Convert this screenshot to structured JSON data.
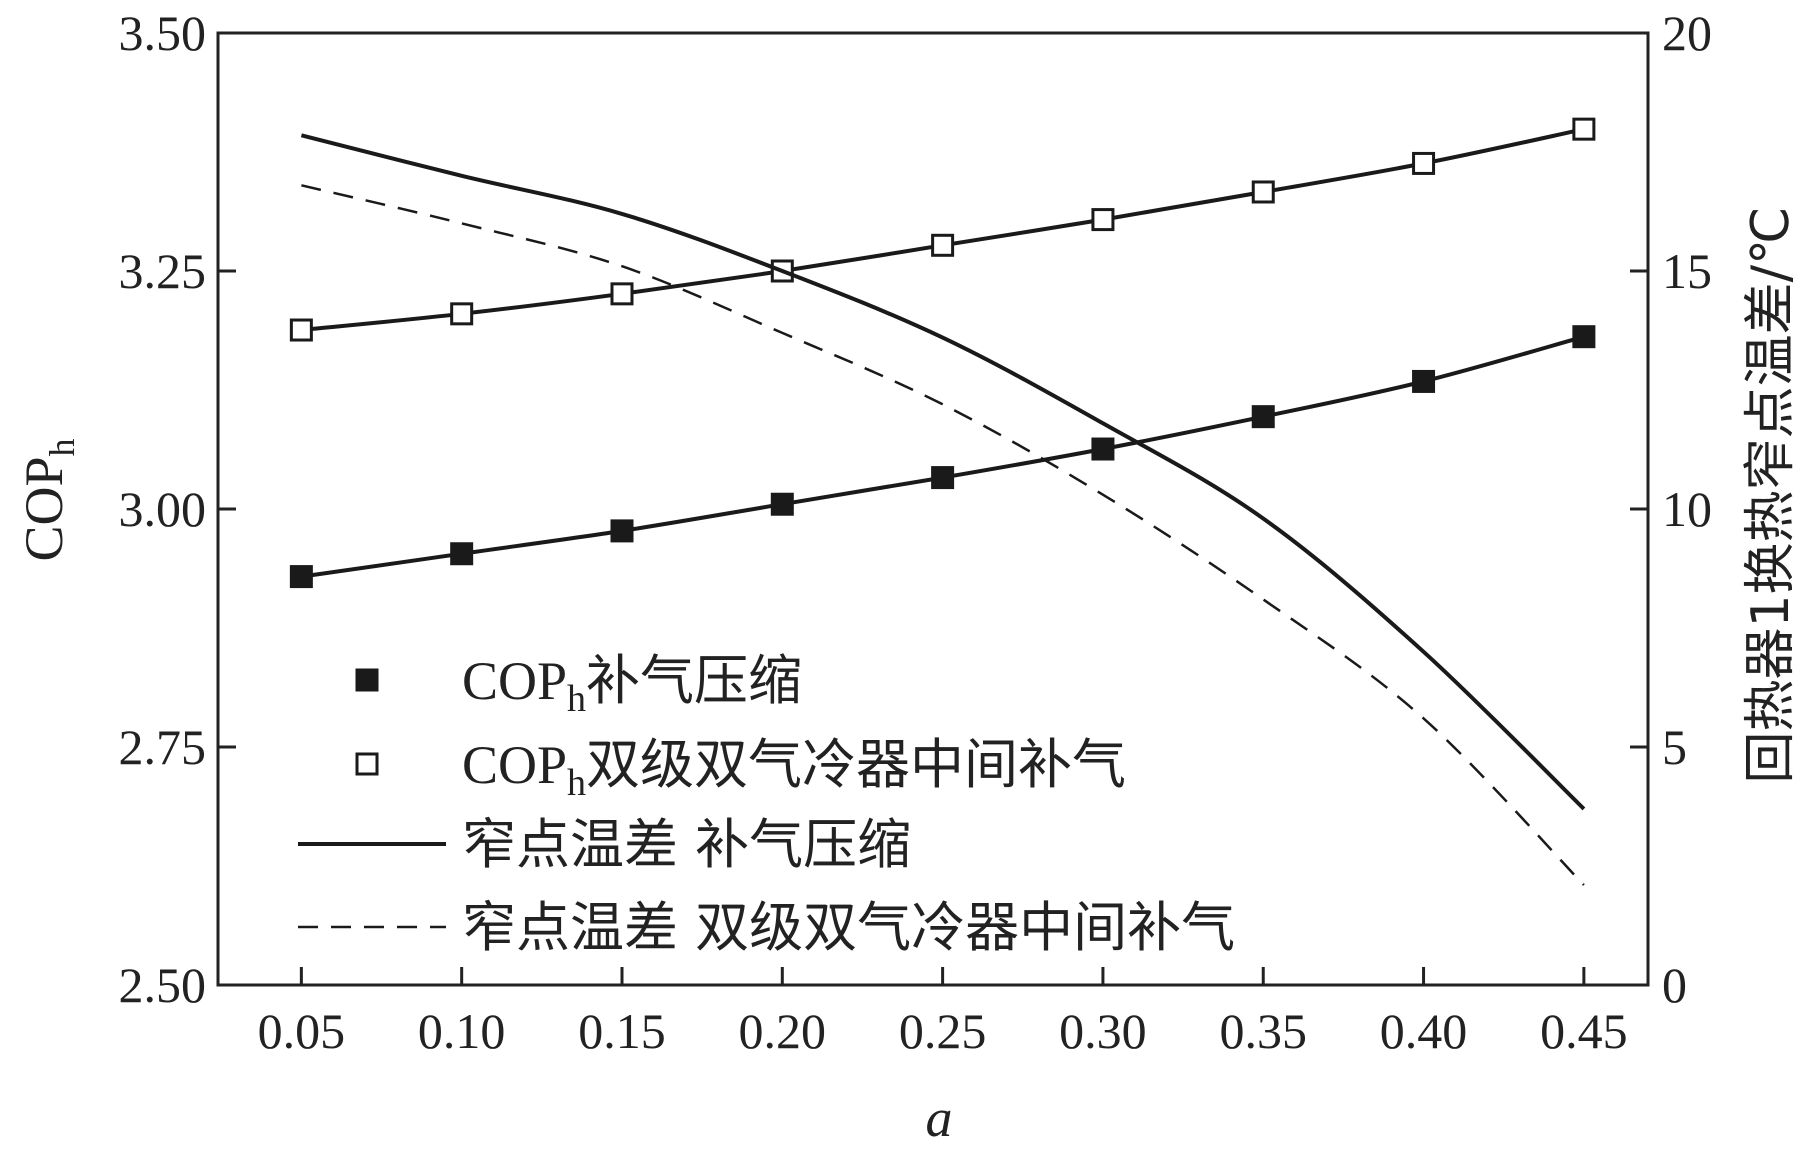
{
  "chart_data": {
    "type": "line",
    "xlabel": "a",
    "ylabel": "COP",
    "ylabel_sub": "h",
    "y2label": "回热器1换热窄点温差/℃",
    "xlim": [
      0.024,
      0.47
    ],
    "ylim": [
      2.5,
      3.5
    ],
    "y2lim": [
      0,
      20
    ],
    "x_ticks": [
      "0.05",
      "0.10",
      "0.15",
      "0.20",
      "0.25",
      "0.30",
      "0.35",
      "0.40",
      "0.45"
    ],
    "y_ticks": [
      "2.50",
      "2.75",
      "3.00",
      "3.25",
      "3.50"
    ],
    "y2_ticks": [
      "0",
      "5",
      "10",
      "15",
      "20"
    ],
    "grid": false,
    "legend_position": "bottom-left",
    "x": [
      0.05,
      0.1,
      0.15,
      0.2,
      0.25,
      0.3,
      0.35,
      0.4,
      0.45
    ],
    "series": [
      {
        "name": "COPh补气压缩",
        "legend_main": "COP",
        "legend_sub": "h",
        "legend_rest": "补气压缩",
        "axis": "left",
        "marker": "filled-square",
        "values": [
          2.929,
          2.953,
          2.977,
          3.005,
          3.033,
          3.063,
          3.097,
          3.134,
          3.181
        ]
      },
      {
        "name": "COPh双级双气冷器中间补气",
        "legend_main": "COP",
        "legend_sub": "h",
        "legend_rest": "双级双气冷器中间补气",
        "axis": "left",
        "marker": "open-square",
        "values": [
          3.188,
          3.205,
          3.226,
          3.25,
          3.277,
          3.304,
          3.333,
          3.363,
          3.399
        ]
      },
      {
        "name": "窄点温差 补气压缩",
        "legend_main": "窄点温差  补气压缩",
        "axis": "right",
        "line": "solid",
        "values": [
          17.85,
          17.0,
          16.2,
          15.0,
          13.6,
          11.8,
          9.8,
          7.0,
          3.7
        ]
      },
      {
        "name": "窄点温差 双级双气冷器中间补气",
        "legend_main": "窄点温差  双级双气冷器中间补气",
        "axis": "right",
        "line": "dashed",
        "values": [
          16.8,
          16.0,
          15.1,
          13.7,
          12.2,
          10.3,
          8.1,
          5.6,
          2.1
        ]
      }
    ]
  }
}
